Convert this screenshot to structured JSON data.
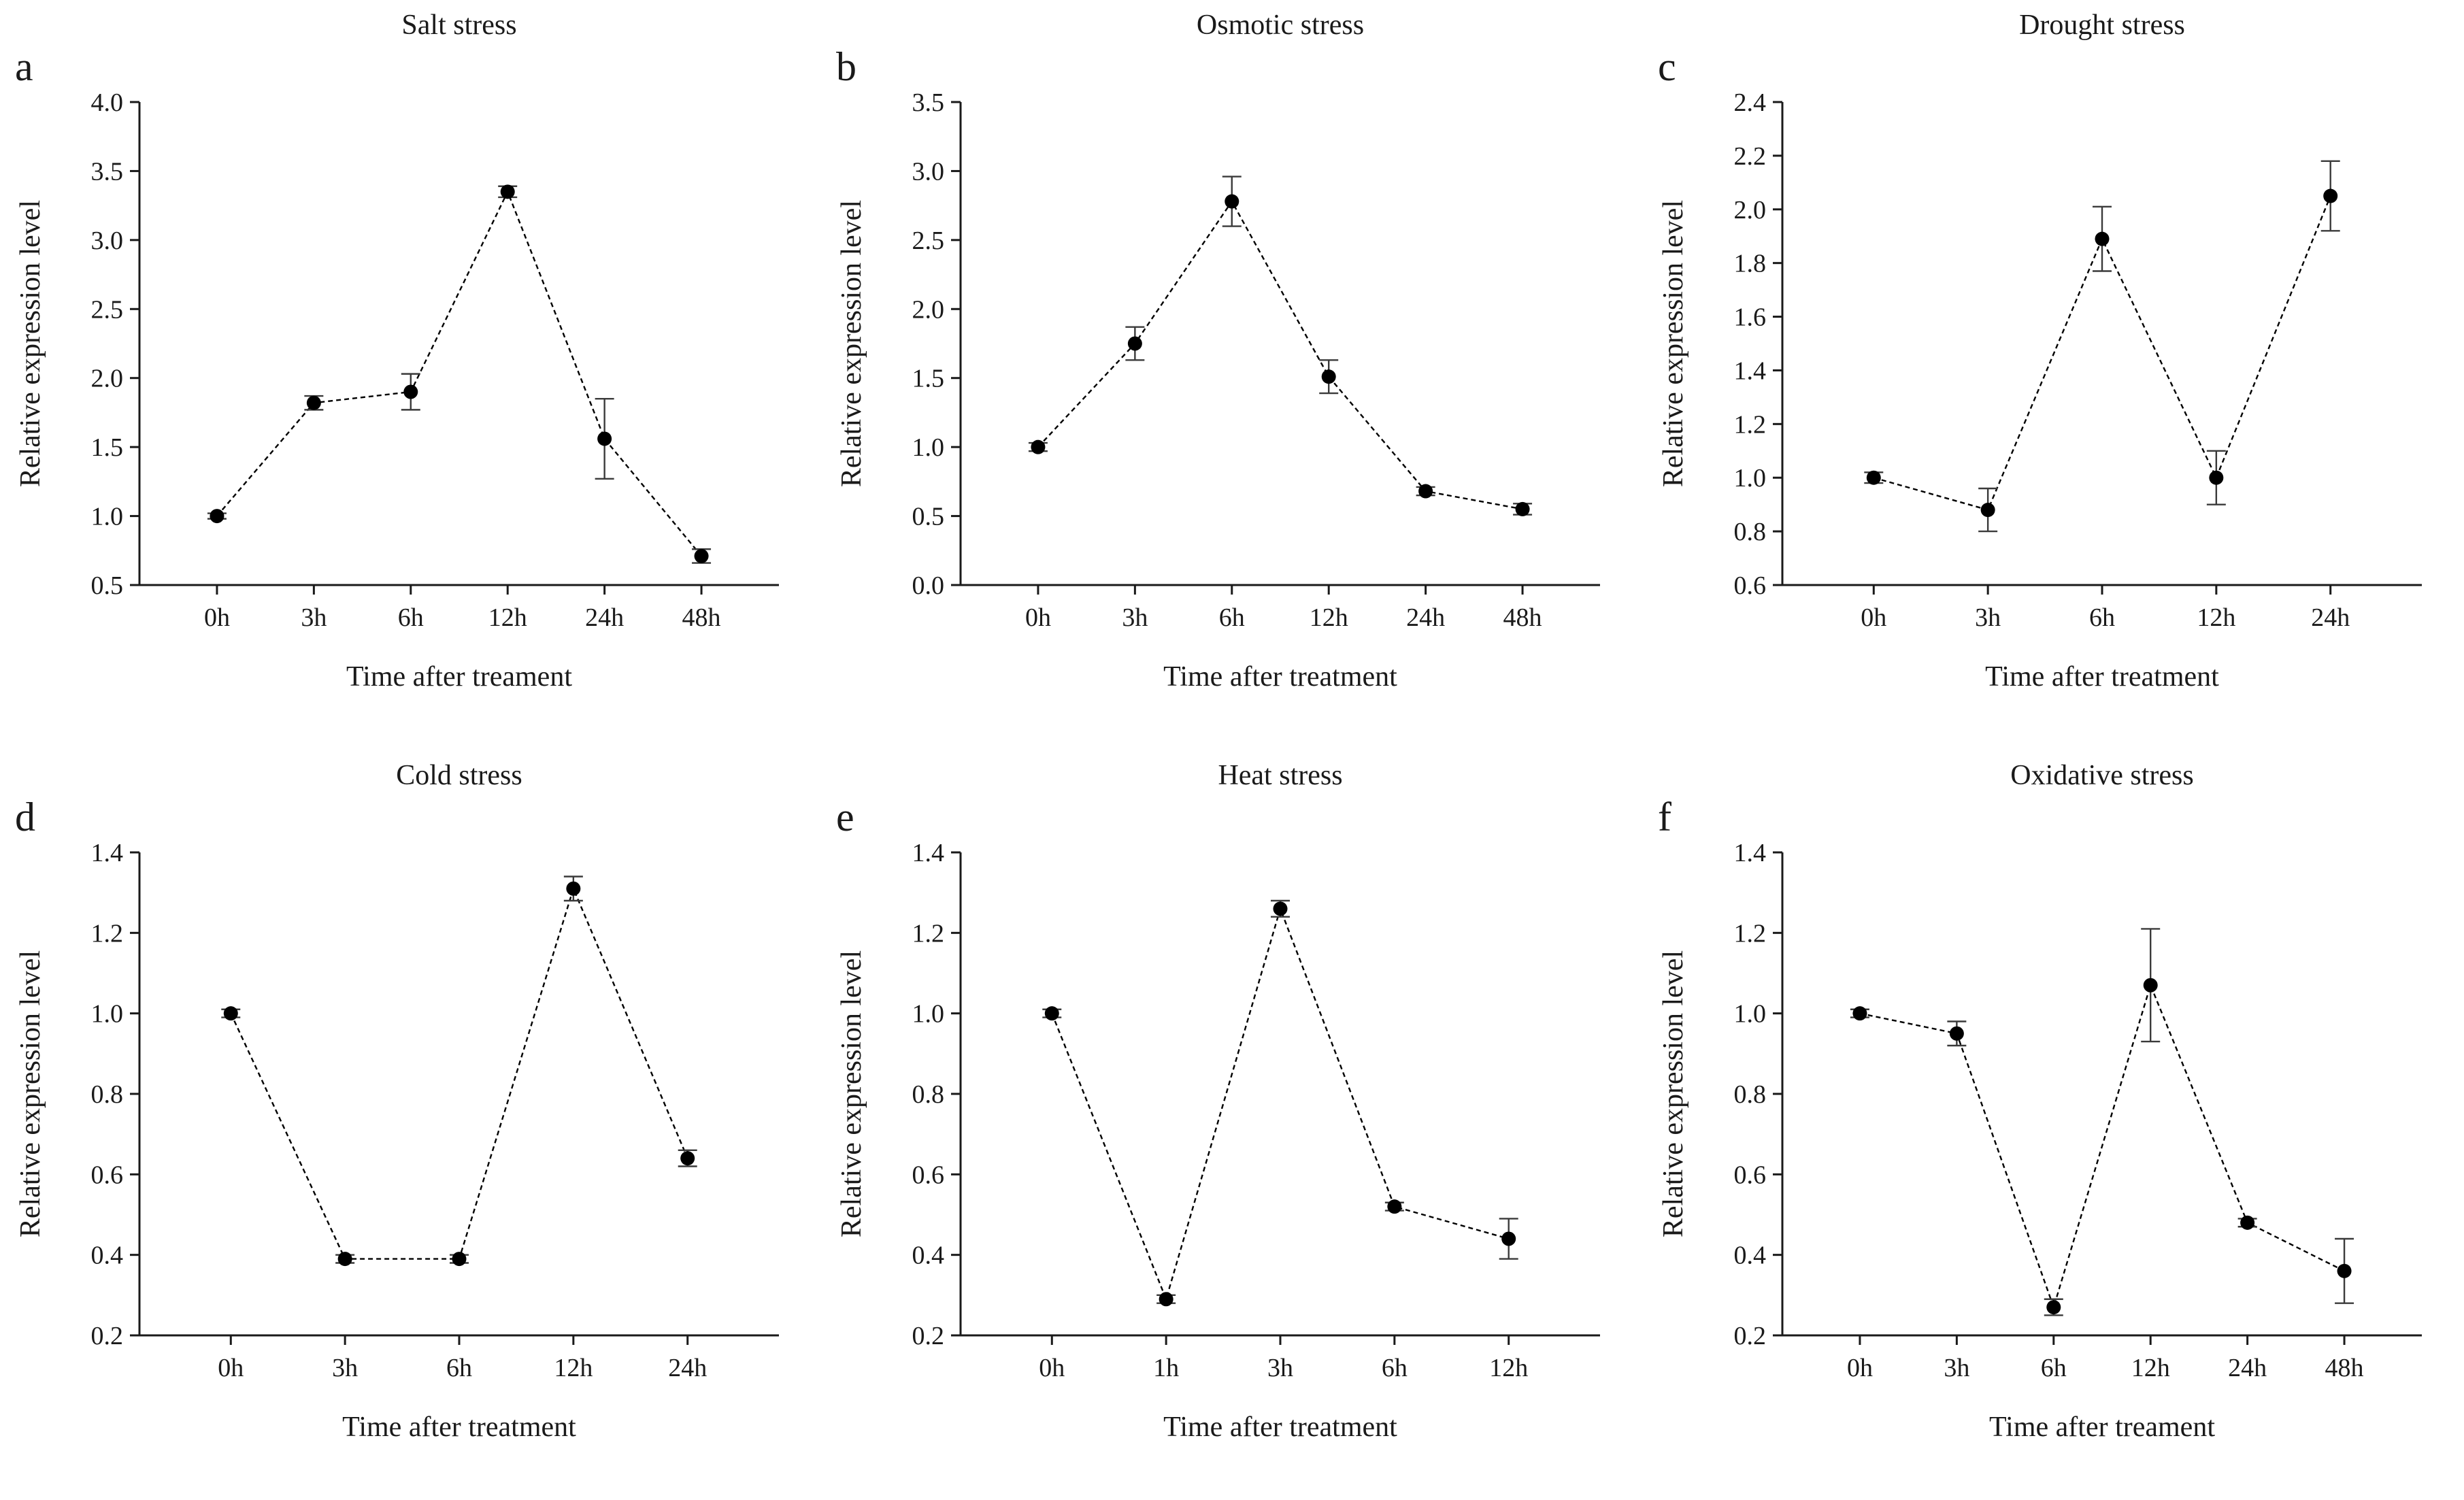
{
  "figure": {
    "background": "#ffffff",
    "series_color": "#000000",
    "errorbar_color": "#3a3a3a",
    "text_color": "#1a1a1a"
  },
  "chart_data": [
    {
      "type": "line",
      "letter": "a",
      "title": "Salt stress",
      "xlabel": "Time after treament",
      "ylabel": "Relative expression level",
      "categories": [
        "0h",
        "3h",
        "6h",
        "12h",
        "24h",
        "48h"
      ],
      "values": [
        1.0,
        1.82,
        1.9,
        3.35,
        1.56,
        0.71
      ],
      "errors": [
        0.02,
        0.05,
        0.13,
        0.04,
        0.29,
        0.05
      ],
      "ylim": [
        0.5,
        4.0
      ],
      "ystep": 0.5,
      "grid": false,
      "legend": false,
      "marker": "circle"
    },
    {
      "type": "line",
      "letter": "b",
      "title": "Osmotic stress",
      "xlabel": "Time after treatment",
      "ylabel": "Relative expression level",
      "categories": [
        "0h",
        "3h",
        "6h",
        "12h",
        "24h",
        "48h"
      ],
      "values": [
        1.0,
        1.75,
        2.78,
        1.51,
        0.68,
        0.55
      ],
      "errors": [
        0.03,
        0.12,
        0.18,
        0.12,
        0.03,
        0.04
      ],
      "ylim": [
        0.0,
        3.5
      ],
      "ystep": 0.5,
      "grid": false,
      "legend": false,
      "marker": "circle"
    },
    {
      "type": "line",
      "letter": "c",
      "title": "Drought stress",
      "xlabel": "Time after treatment",
      "ylabel": "Relative expression level",
      "categories": [
        "0h",
        "3h",
        "6h",
        "12h",
        "24h"
      ],
      "values": [
        1.0,
        0.88,
        1.89,
        1.0,
        2.05
      ],
      "errors": [
        0.02,
        0.08,
        0.12,
        0.1,
        0.13
      ],
      "ylim": [
        0.6,
        2.4
      ],
      "ystep": 0.2,
      "grid": false,
      "legend": false,
      "marker": "circle"
    },
    {
      "type": "line",
      "letter": "d",
      "title": "Cold stress",
      "xlabel": "Time after treatment",
      "ylabel": "Relative expression level",
      "categories": [
        "0h",
        "3h",
        "6h",
        "12h",
        "24h"
      ],
      "values": [
        1.0,
        0.39,
        0.39,
        1.31,
        0.64
      ],
      "errors": [
        0.01,
        0.01,
        0.01,
        0.03,
        0.02
      ],
      "ylim": [
        0.2,
        1.4
      ],
      "ystep": 0.2,
      "grid": false,
      "legend": false,
      "marker": "circle"
    },
    {
      "type": "line",
      "letter": "e",
      "title": "Heat stress",
      "xlabel": "Time after treatment",
      "ylabel": "Relative expression level",
      "categories": [
        "0h",
        "1h",
        "3h",
        "6h",
        "12h"
      ],
      "values": [
        1.0,
        0.29,
        1.26,
        0.52,
        0.44
      ],
      "errors": [
        0.01,
        0.01,
        0.02,
        0.01,
        0.05
      ],
      "ylim": [
        0.2,
        1.4
      ],
      "ystep": 0.2,
      "grid": false,
      "legend": false,
      "marker": "circle"
    },
    {
      "type": "line",
      "letter": "f",
      "title": "Oxidative stress",
      "xlabel": "Time after treament",
      "ylabel": "Relative expression level",
      "categories": [
        "0h",
        "3h",
        "6h",
        "12h",
        "24h",
        "48h"
      ],
      "values": [
        1.0,
        0.95,
        0.27,
        1.07,
        0.48,
        0.36
      ],
      "errors": [
        0.01,
        0.03,
        0.02,
        0.14,
        0.01,
        0.08
      ],
      "ylim": [
        0.2,
        1.4
      ],
      "ystep": 0.2,
      "grid": false,
      "legend": false,
      "marker": "circle"
    }
  ]
}
